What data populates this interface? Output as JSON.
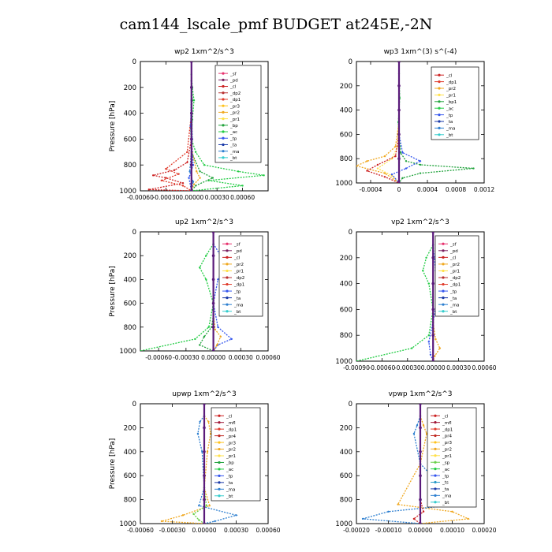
{
  "title": "cam144_lscale_pmf  BUDGET at245E,-2N",
  "colors": {
    "sf": "#e8326e",
    "pd": "#7a1f5f",
    "cl": "#cc2222",
    "dp2": "#b83030",
    "dp1": "#e03a2a",
    "pr3": "#ffc21a",
    "pr2": "#f0a820",
    "pr1": "#ffe04a",
    "bp": "#21a33c",
    "ac": "#22cc44",
    "tp": "#3355ee",
    "ta": "#1a3aa8",
    "ma": "#2d7fd0",
    "bt": "#33cccc",
    "mfl": "#a01838",
    "pr4": "#c02820",
    "sp": "#6ad04a",
    "ts": "#2a9ac8",
    "total": "#5a1a7a"
  },
  "chart_data": [
    {
      "type": "line",
      "title": "wp2   1xm^2/s^3",
      "xlabel": "",
      "ylabel": "Pressure  [hPa]",
      "xlim": [
        -0.0006,
        0.0009
      ],
      "ylim": [
        1000,
        0
      ],
      "xticks": [
        "-0.00060",
        "-0.00030",
        "0.00000",
        "0.00030",
        "0.00060"
      ],
      "yticks": [
        "0",
        "200",
        "400",
        "600",
        "800",
        "1000"
      ],
      "legend": [
        "_sf",
        "_pd",
        "_cl",
        "_dp2",
        "_dp1",
        "_pr3",
        "_pr2",
        "_pr1",
        "_bp",
        "_ac",
        "_tp",
        "_ta",
        "_ma",
        "_bt"
      ],
      "legend_keys": [
        "sf",
        "pd",
        "cl",
        "dp2",
        "dp1",
        "pr3",
        "pr2",
        "pr1",
        "bp",
        "ac",
        "tp",
        "ta",
        "ma",
        "bt"
      ],
      "series": [
        {
          "key": "total",
          "x": [
            0,
            0,
            0,
            0,
            0,
            0
          ],
          "y": [
            0,
            200,
            400,
            600,
            800,
            1000
          ]
        },
        {
          "key": "ac",
          "x": [
            0,
            1e-05,
            3e-05,
            1e-05,
            0,
            5e-05,
            0.00015,
            0.00055,
            0.00085,
            0.0002,
            0.0006,
            0
          ],
          "y": [
            100,
            200,
            300,
            450,
            600,
            700,
            800,
            850,
            880,
            920,
            960,
            1000
          ]
        },
        {
          "key": "bp",
          "x": [
            0,
            1e-05,
            -1e-05,
            0,
            0.0001,
            0.00025,
            5e-05,
            0
          ],
          "y": [
            150,
            300,
            500,
            700,
            850,
            900,
            960,
            1000
          ]
        },
        {
          "key": "cl",
          "x": [
            0,
            0,
            -5e-05,
            -0.0002,
            -0.00045,
            -0.0003,
            -0.0001,
            -0.0005,
            0
          ],
          "y": [
            300,
            600,
            780,
            840,
            880,
            900,
            940,
            990,
            1000
          ]
        },
        {
          "key": "dp1",
          "x": [
            0,
            -5e-05,
            -0.0003,
            -0.00015,
            -0.00035,
            -0.0001,
            0
          ],
          "y": [
            400,
            700,
            830,
            870,
            920,
            960,
            1000
          ]
        },
        {
          "key": "pr2",
          "x": [
            0,
            1e-05,
            6e-05,
            0.0001,
            3e-05,
            0
          ],
          "y": [
            500,
            700,
            850,
            900,
            950,
            1000
          ]
        },
        {
          "key": "tp",
          "x": [
            0,
            -1e-05,
            2e-05,
            -3e-05,
            0
          ],
          "y": [
            200,
            500,
            800,
            900,
            1000
          ]
        },
        {
          "key": "ma",
          "x": [
            0,
            1e-05,
            -2e-05,
            2e-05,
            0
          ],
          "y": [
            300,
            600,
            850,
            930,
            1000
          ]
        }
      ]
    },
    {
      "type": "line",
      "title": "wp3   1xm^(3) s^(-4)",
      "xlabel": "",
      "ylabel": "",
      "xlim": [
        -0.0006,
        0.0012
      ],
      "ylim": [
        1000,
        0
      ],
      "xticks": [
        "-0.0004",
        "0",
        "0.0004",
        "0.0008",
        "0.0012"
      ],
      "xtick_values": [
        -0.0004,
        0,
        0.0004,
        0.0008,
        0.0012
      ],
      "yticks": [
        "0",
        "200",
        "400",
        "600",
        "800",
        "1000"
      ],
      "legend": [
        "_cl",
        "_dp1",
        "_pr2",
        "_pr1",
        "_bp1",
        "_ac",
        "_tp",
        "_ta",
        "_ma",
        "_bt"
      ],
      "legend_keys": [
        "cl",
        "dp1",
        "pr2",
        "pr1",
        "bp",
        "ac",
        "tp",
        "ta",
        "ma",
        "bt"
      ],
      "series": [
        {
          "key": "total",
          "x": [
            0,
            0,
            0,
            0,
            0,
            0
          ],
          "y": [
            0,
            200,
            400,
            600,
            800,
            1000
          ]
        },
        {
          "key": "bp",
          "x": [
            0,
            2e-05,
            0.0001,
            0.0003,
            0.00105,
            0.0003,
            5e-05,
            0
          ],
          "y": [
            600,
            750,
            820,
            850,
            880,
            920,
            960,
            1000
          ]
        },
        {
          "key": "pr2",
          "x": [
            0,
            -5e-05,
            -0.0002,
            -0.00045,
            -0.0006,
            -0.0002,
            0
          ],
          "y": [
            500,
            700,
            780,
            820,
            860,
            920,
            1000
          ]
        },
        {
          "key": "pr1",
          "x": [
            0,
            -2e-05,
            -0.0001,
            -0.0003,
            -0.0001,
            0
          ],
          "y": [
            400,
            700,
            800,
            880,
            940,
            1000
          ]
        },
        {
          "key": "cl",
          "x": [
            0,
            -5e-05,
            -0.0003,
            -0.00045,
            -0.0002,
            0
          ],
          "y": [
            600,
            780,
            850,
            900,
            950,
            1000
          ]
        },
        {
          "key": "tp",
          "x": [
            0,
            5e-05,
            0.0003,
            0.0001,
            -0.0001,
            0
          ],
          "y": [
            600,
            750,
            820,
            880,
            930,
            1000
          ]
        },
        {
          "key": "ac",
          "x": [
            0,
            1e-05,
            -1e-05,
            1e-05,
            0
          ],
          "y": [
            100,
            300,
            500,
            700,
            1000
          ]
        }
      ]
    },
    {
      "type": "line",
      "title": "up2   1xm^2/s^3",
      "xlabel": "",
      "ylabel": "Pressure  [hPa]",
      "xlim": [
        -0.0008,
        0.0006
      ],
      "ylim": [
        1000,
        0
      ],
      "xticks": [
        "-0.00060",
        "-0.00030",
        "0.00000",
        "0.00030",
        "0.00060"
      ],
      "xtick_values": [
        -0.0006,
        -0.0003,
        0,
        0.0003,
        0.0006
      ],
      "yticks": [
        "0",
        "200",
        "400",
        "600",
        "800",
        "1000"
      ],
      "legend": [
        "_sf",
        "_pd",
        "_cl",
        "_pr2",
        "_pr1",
        "_dp2",
        "_dp1",
        "_tp",
        "_ta",
        "_ma",
        "_bt"
      ],
      "legend_keys": [
        "sf",
        "pd",
        "cl",
        "pr2",
        "pr1",
        "dp2",
        "dp1",
        "tp",
        "ta",
        "ma",
        "bt"
      ],
      "series": [
        {
          "key": "total",
          "x": [
            0,
            0,
            0,
            0,
            0,
            0
          ],
          "y": [
            0,
            200,
            400,
            600,
            800,
            1000
          ]
        },
        {
          "key": "ac",
          "x": [
            0,
            -8e-05,
            -0.00015,
            -8e-05,
            0,
            -5e-05,
            -0.0002,
            -0.0008
          ],
          "y": [
            100,
            200,
            300,
            400,
            600,
            800,
            900,
            1000
          ]
        },
        {
          "key": "tp",
          "x": [
            0,
            8e-05,
            0.00012,
            5e-05,
            0,
            5e-05,
            0.0002,
            5e-05,
            0
          ],
          "y": [
            100,
            200,
            300,
            400,
            600,
            800,
            900,
            950,
            1000
          ]
        },
        {
          "key": "pr2",
          "x": [
            0,
            2e-05,
            8e-05,
            4e-05,
            0
          ],
          "y": [
            700,
            820,
            880,
            950,
            1000
          ]
        },
        {
          "key": "bp",
          "x": [
            0,
            -2e-05,
            -0.0001,
            -0.00015,
            0
          ],
          "y": [
            700,
            800,
            880,
            950,
            1000
          ]
        }
      ]
    },
    {
      "type": "line",
      "title": "vp2   1xm^2/s^3",
      "xlabel": "",
      "ylabel": "",
      "xlim": [
        -0.0009,
        0.0006
      ],
      "ylim": [
        1000,
        0
      ],
      "xticks": [
        "-0.00090",
        "-0.00060",
        "-0.00030",
        "0.00000",
        "0.00030",
        "0.00060"
      ],
      "xtick_values": [
        -0.0009,
        -0.0006,
        -0.0003,
        0,
        0.0003,
        0.0006
      ],
      "yticks": [
        "0",
        "200",
        "400",
        "600",
        "800",
        "1000"
      ],
      "legend": [
        "_sf",
        "_pd",
        "_cl",
        "_pr2",
        "_pr1",
        "_dp2",
        "_dp1",
        "_tp",
        "_ta",
        "_ma",
        "_bt"
      ],
      "legend_keys": [
        "sf",
        "pd",
        "cl",
        "pr2",
        "pr1",
        "dp2",
        "dp1",
        "tp",
        "ta",
        "ma",
        "bt"
      ],
      "series": [
        {
          "key": "total",
          "x": [
            0,
            0,
            0,
            0,
            0,
            0
          ],
          "y": [
            0,
            200,
            400,
            600,
            800,
            1000
          ]
        },
        {
          "key": "ac",
          "x": [
            0,
            -8e-05,
            -0.00012,
            -5e-05,
            0,
            -5e-05,
            -0.00025,
            -0.0009
          ],
          "y": [
            100,
            200,
            300,
            400,
            600,
            800,
            900,
            1000
          ]
        },
        {
          "key": "tp",
          "x": [
            0,
            3e-05,
            5e-05,
            0,
            -5e-05,
            -3e-05,
            0
          ],
          "y": [
            100,
            300,
            500,
            700,
            850,
            950,
            1000
          ]
        },
        {
          "key": "pr2",
          "x": [
            0,
            3e-05,
            8e-05,
            2e-05,
            0
          ],
          "y": [
            700,
            830,
            900,
            960,
            1000
          ]
        }
      ]
    },
    {
      "type": "line",
      "title": "upwp   1xm^2/s^3",
      "xlabel": "",
      "ylabel": "Pressure  [hPa]",
      "xlim": [
        -0.0006,
        0.0006
      ],
      "ylim": [
        1000,
        0
      ],
      "xticks": [
        "-0.00060",
        "-0.00030",
        "0.00000",
        "0.00030",
        "0.00060"
      ],
      "xtick_values": [
        -0.0006,
        -0.0003,
        0,
        0.0003,
        0.0006
      ],
      "yticks": [
        "0",
        "200",
        "400",
        "600",
        "800",
        "1000"
      ],
      "legend": [
        "_cl",
        "_mfl",
        "_dp1",
        "_pr4",
        "_pr3",
        "_pr2",
        "_pr1",
        "_bp",
        "_ac",
        "_tp",
        "_ta",
        "_ma",
        "_bt"
      ],
      "legend_keys": [
        "cl",
        "mfl",
        "dp1",
        "pr4",
        "pr3",
        "pr2",
        "pr1",
        "bp",
        "ac",
        "tp",
        "ta",
        "ma",
        "bt"
      ],
      "series": [
        {
          "key": "total",
          "x": [
            0,
            0,
            0,
            0,
            0,
            0
          ],
          "y": [
            0,
            200,
            400,
            600,
            800,
            1000
          ]
        },
        {
          "key": "pr2",
          "x": [
            0,
            4e-05,
            6e-05,
            3e-05,
            0,
            5e-05,
            -0.0002,
            -0.0004,
            0
          ],
          "y": [
            100,
            150,
            250,
            400,
            700,
            850,
            930,
            980,
            1000
          ]
        },
        {
          "key": "ma",
          "x": [
            0,
            -4e-05,
            -6e-05,
            -2e-05,
            0,
            -5e-05,
            0.0003,
            0.0001,
            0
          ],
          "y": [
            100,
            150,
            250,
            400,
            700,
            850,
            930,
            980,
            1000
          ]
        },
        {
          "key": "sp",
          "x": [
            0,
            2e-05,
            -0.0001,
            -5e-05,
            0
          ],
          "y": [
            700,
            850,
            920,
            970,
            1000
          ]
        }
      ]
    },
    {
      "type": "line",
      "title": "vpwp   1xm^2/s^3",
      "xlabel": "",
      "ylabel": "",
      "xlim": [
        -0.0002,
        0.0002
      ],
      "ylim": [
        1000,
        0
      ],
      "xticks": [
        "-0.00020",
        "-0.00010",
        "0.00000",
        "0.00010",
        "0.00020"
      ],
      "xtick_values": [
        -0.0002,
        -0.0001,
        0,
        0.0001,
        0.0002
      ],
      "yticks": [
        "0",
        "200",
        "400",
        "600",
        "800",
        "1000"
      ],
      "legend": [
        "_cl",
        "_mfl",
        "_dp1",
        "_pr4",
        "_pr3",
        "_pr2",
        "_pr1",
        "_sp",
        "_ac",
        "_tp",
        "_ts",
        "_ta",
        "_ma",
        "_bt"
      ],
      "legend_keys": [
        "cl",
        "mfl",
        "dp1",
        "pr4",
        "pr3",
        "pr2",
        "pr1",
        "sp",
        "ac",
        "tp",
        "ts",
        "ta",
        "ma",
        "bt"
      ],
      "series": [
        {
          "key": "total",
          "x": [
            0,
            0,
            0,
            0,
            0,
            0
          ],
          "y": [
            0,
            200,
            400,
            600,
            800,
            1000
          ]
        },
        {
          "key": "pr2",
          "x": [
            0,
            1e-05,
            2e-05,
            0,
            -7e-05,
            0.0001,
            0.00015,
            0
          ],
          "y": [
            100,
            180,
            250,
            500,
            840,
            900,
            960,
            1000
          ]
        },
        {
          "key": "ma",
          "x": [
            0,
            -1e-05,
            -2e-05,
            0,
            0.00012,
            -0.0001,
            -0.00018,
            0
          ],
          "y": [
            100,
            180,
            250,
            500,
            840,
            900,
            960,
            1000
          ]
        },
        {
          "key": "cl",
          "x": [
            0,
            1e-05,
            -2e-05,
            0
          ],
          "y": [
            800,
            900,
            960,
            1000
          ]
        }
      ]
    }
  ]
}
